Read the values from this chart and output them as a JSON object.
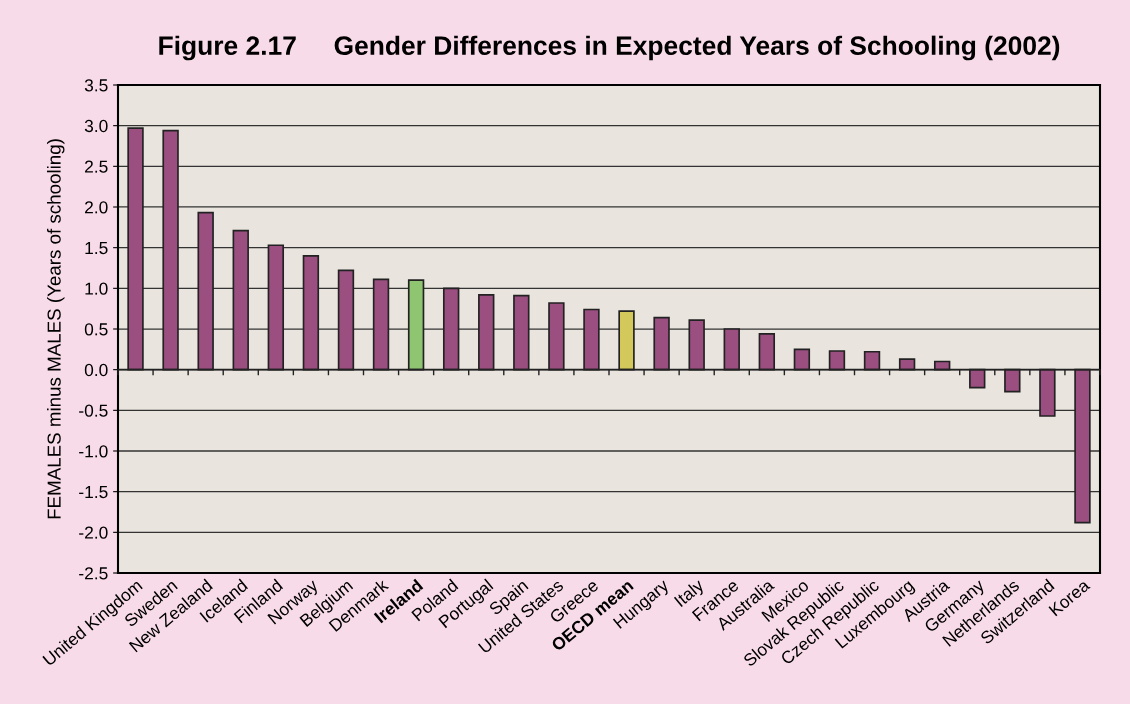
{
  "chart_data": {
    "type": "bar",
    "title": "Figure 2.17     Gender Differences in Expected Years of Schooling (2002)",
    "ylabel": "FEMALES minus MALES (Years of schooling)",
    "categories": [
      "United Kingdom",
      "Sweden",
      "New Zealand",
      "Iceland",
      "Finland",
      "Norway",
      "Belgium",
      "Denmark",
      "Ireland",
      "Poland",
      "Portugal",
      "Spain",
      "United States",
      "Greece",
      "OECD mean",
      "Hungary",
      "Italy",
      "France",
      "Australia",
      "Mexico",
      "Slovak Republic",
      "Czech Republic",
      "Luxembourg",
      "Austria",
      "Germany",
      "Netherlands",
      "Switzerland",
      "Korea"
    ],
    "values": [
      2.97,
      2.94,
      1.93,
      1.71,
      1.53,
      1.4,
      1.22,
      1.11,
      1.1,
      1.0,
      0.92,
      0.91,
      0.82,
      0.74,
      0.72,
      0.64,
      0.61,
      0.5,
      0.44,
      0.25,
      0.23,
      0.22,
      0.13,
      0.1,
      -0.22,
      -0.27,
      -0.57,
      -1.88
    ],
    "colors": [
      "#9b4f80",
      "#9b4f80",
      "#9b4f80",
      "#9b4f80",
      "#9b4f80",
      "#9b4f80",
      "#9b4f80",
      "#9b4f80",
      "#8fc470",
      "#9b4f80",
      "#9b4f80",
      "#9b4f80",
      "#9b4f80",
      "#9b4f80",
      "#d2c95a",
      "#9b4f80",
      "#9b4f80",
      "#9b4f80",
      "#9b4f80",
      "#9b4f80",
      "#9b4f80",
      "#9b4f80",
      "#9b4f80",
      "#9b4f80",
      "#9b4f80",
      "#9b4f80",
      "#9b4f80",
      "#9b4f80"
    ],
    "ylim": [
      -2.5,
      3.5
    ],
    "yticks": [
      -2.5,
      {
        "value": -2,
        "label": "-2.0"
      },
      -1.5,
      {
        "value": -1,
        "label": "-1.0"
      },
      -0.5,
      {
        "value": 0,
        "label": "0.0"
      },
      0.5,
      {
        "value": 1,
        "label": "1.0"
      },
      1.5,
      {
        "value": 2,
        "label": "2.0"
      },
      2.5,
      {
        "value": 3,
        "label": "3.0"
      },
      3.5
    ],
    "grid": "y"
  }
}
